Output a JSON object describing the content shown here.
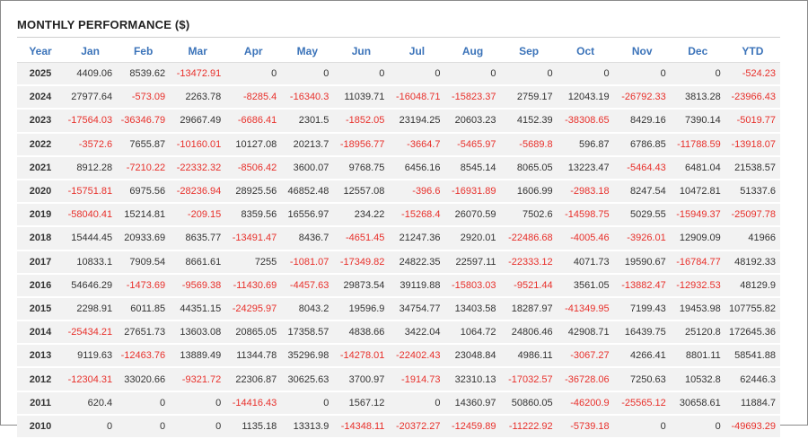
{
  "title": "MONTHLY PERFORMANCE ($)",
  "colors": {
    "header": "#3b73b9",
    "negative": "#e8302b",
    "positive": "#333333",
    "row_bg": "#f2f2f2"
  },
  "columns": [
    "Year",
    "Jan",
    "Feb",
    "Mar",
    "Apr",
    "May",
    "Jun",
    "Jul",
    "Aug",
    "Sep",
    "Oct",
    "Nov",
    "Dec",
    "YTD"
  ],
  "rows": [
    [
      "2025",
      "4409.06",
      "8539.62",
      "-13472.91",
      "0",
      "0",
      "0",
      "0",
      "0",
      "0",
      "0",
      "0",
      "0",
      "-524.23"
    ],
    [
      "2024",
      "27977.64",
      "-573.09",
      "2263.78",
      "-8285.4",
      "-16340.3",
      "11039.71",
      "-16048.71",
      "-15823.37",
      "2759.17",
      "12043.19",
      "-26792.33",
      "3813.28",
      "-23966.43"
    ],
    [
      "2023",
      "-17564.03",
      "-36346.79",
      "29667.49",
      "-6686.41",
      "2301.5",
      "-1852.05",
      "23194.25",
      "20603.23",
      "4152.39",
      "-38308.65",
      "8429.16",
      "7390.14",
      "-5019.77"
    ],
    [
      "2022",
      "-3572.6",
      "7655.87",
      "-10160.01",
      "10127.08",
      "20213.7",
      "-18956.77",
      "-3664.7",
      "-5465.97",
      "-5689.8",
      "596.87",
      "6786.85",
      "-11788.59",
      "-13918.07"
    ],
    [
      "2021",
      "8912.28",
      "-7210.22",
      "-22332.32",
      "-8506.42",
      "3600.07",
      "9768.75",
      "6456.16",
      "8545.14",
      "8065.05",
      "13223.47",
      "-5464.43",
      "6481.04",
      "21538.57"
    ],
    [
      "2020",
      "-15751.81",
      "6975.56",
      "-28236.94",
      "28925.56",
      "46852.48",
      "12557.08",
      "-396.6",
      "-16931.89",
      "1606.99",
      "-2983.18",
      "8247.54",
      "10472.81",
      "51337.6"
    ],
    [
      "2019",
      "-58040.41",
      "15214.81",
      "-209.15",
      "8359.56",
      "16556.97",
      "234.22",
      "-15268.4",
      "26070.59",
      "7502.6",
      "-14598.75",
      "5029.55",
      "-15949.37",
      "-25097.78"
    ],
    [
      "2018",
      "15444.45",
      "20933.69",
      "8635.77",
      "-13491.47",
      "8436.7",
      "-4651.45",
      "21247.36",
      "2920.01",
      "-22486.68",
      "-4005.46",
      "-3926.01",
      "12909.09",
      "41966"
    ],
    [
      "2017",
      "10833.1",
      "7909.54",
      "8661.61",
      "7255",
      "-1081.07",
      "-17349.82",
      "24822.35",
      "22597.11",
      "-22333.12",
      "4071.73",
      "19590.67",
      "-16784.77",
      "48192.33"
    ],
    [
      "2016",
      "54646.29",
      "-1473.69",
      "-9569.38",
      "-11430.69",
      "-4457.63",
      "29873.54",
      "39119.88",
      "-15803.03",
      "-9521.44",
      "3561.05",
      "-13882.47",
      "-12932.53",
      "48129.9"
    ],
    [
      "2015",
      "2298.91",
      "6011.85",
      "44351.15",
      "-24295.97",
      "8043.2",
      "19596.9",
      "34754.77",
      "13403.58",
      "18287.97",
      "-41349.95",
      "7199.43",
      "19453.98",
      "107755.82"
    ],
    [
      "2014",
      "-25434.21",
      "27651.73",
      "13603.08",
      "20865.05",
      "17358.57",
      "4838.66",
      "3422.04",
      "1064.72",
      "24806.46",
      "42908.71",
      "16439.75",
      "25120.8",
      "172645.36"
    ],
    [
      "2013",
      "9119.63",
      "-12463.76",
      "13889.49",
      "11344.78",
      "35296.98",
      "-14278.01",
      "-22402.43",
      "23048.84",
      "4986.11",
      "-3067.27",
      "4266.41",
      "8801.11",
      "58541.88"
    ],
    [
      "2012",
      "-12304.31",
      "33020.66",
      "-9321.72",
      "22306.87",
      "30625.63",
      "3700.97",
      "-1914.73",
      "32310.13",
      "-17032.57",
      "-36728.06",
      "7250.63",
      "10532.8",
      "62446.3"
    ],
    [
      "2011",
      "620.4",
      "0",
      "0",
      "-14416.43",
      "0",
      "1567.12",
      "0",
      "14360.97",
      "50860.05",
      "-46200.9",
      "-25565.12",
      "30658.61",
      "11884.7"
    ],
    [
      "2010",
      "0",
      "0",
      "0",
      "1135.18",
      "13313.9",
      "-14348.11",
      "-20372.27",
      "-12459.89",
      "-11222.92",
      "-5739.18",
      "0",
      "0",
      "-49693.29"
    ]
  ]
}
